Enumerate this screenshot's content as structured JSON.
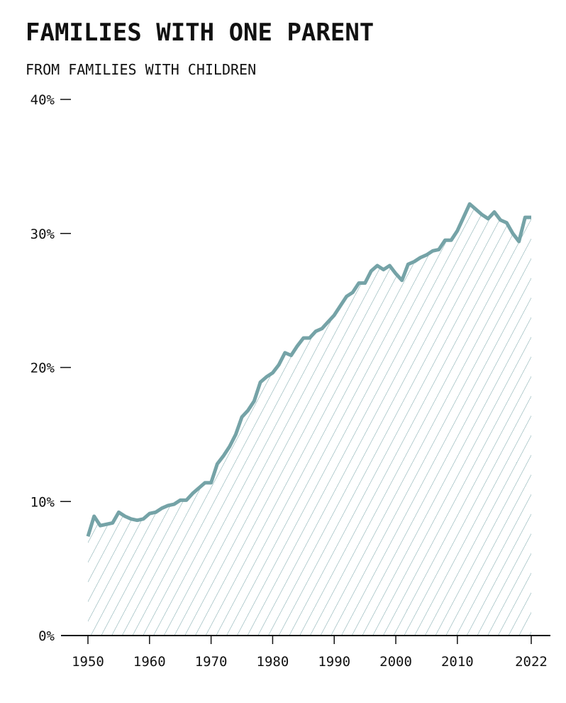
{
  "title": "FAMILIES WITH ONE PARENT",
  "subtitle": "FROM FAMILIES WITH CHILDREN",
  "colors": {
    "line": "#75a3a7",
    "hatch": "#75a3a7",
    "axis": "#111111"
  },
  "chart_data": {
    "type": "area",
    "title": "FAMILIES WITH ONE PARENT",
    "subtitle": "FROM FAMILIES WITH CHILDREN",
    "xlabel": "",
    "ylabel": "",
    "xlim": [
      1946,
      2025
    ],
    "ylim": [
      0,
      40
    ],
    "x_ticks": [
      1950,
      1960,
      1970,
      1980,
      1990,
      2000,
      2010,
      2022
    ],
    "x_tick_labels": [
      "1950",
      "1960",
      "1970",
      "1980",
      "1990",
      "2000",
      "2010",
      "2022"
    ],
    "y_ticks": [
      0,
      10,
      20,
      30,
      40
    ],
    "y_tick_labels": [
      "0%",
      "10%",
      "20%",
      "30%",
      "40%"
    ],
    "grid": false,
    "fill": "hatched",
    "series": [
      {
        "x": [
          1950,
          1951,
          1952,
          1953,
          1954,
          1955,
          1956,
          1957,
          1958,
          1959,
          1960,
          1961,
          1962,
          1963,
          1964,
          1965,
          1966,
          1967,
          1968,
          1969,
          1970,
          1971,
          1972,
          1973,
          1974,
          1975,
          1976,
          1977,
          1978,
          1979,
          1980,
          1981,
          1982,
          1983,
          1984,
          1985,
          1986,
          1987,
          1988,
          1989,
          1990,
          1991,
          1992,
          1993,
          1994,
          1995,
          1996,
          1997,
          1998,
          1999,
          2000,
          2001,
          2002,
          2003,
          2004,
          2005,
          2006,
          2007,
          2008,
          2009,
          2010,
          2011,
          2012,
          2013,
          2014,
          2015,
          2016,
          2017,
          2018,
          2019,
          2020,
          2021,
          2022
        ],
        "values": [
          7.4,
          8.9,
          8.2,
          8.3,
          8.4,
          9.2,
          8.9,
          8.7,
          8.6,
          8.7,
          9.1,
          9.2,
          9.5,
          9.7,
          9.8,
          10.1,
          10.1,
          10.6,
          11.0,
          11.4,
          11.4,
          12.8,
          13.4,
          14.1,
          15.0,
          16.3,
          16.8,
          17.5,
          18.9,
          19.3,
          19.6,
          20.2,
          21.1,
          20.9,
          21.6,
          22.2,
          22.2,
          22.7,
          22.9,
          23.4,
          23.9,
          24.6,
          25.3,
          25.6,
          26.3,
          26.3,
          27.2,
          27.6,
          27.3,
          27.6,
          27.0,
          26.5,
          27.7,
          27.9,
          28.2,
          28.4,
          28.7,
          28.8,
          29.5,
          29.5,
          30.2,
          31.2,
          32.2,
          31.8,
          31.4,
          31.1,
          31.6,
          31.0,
          30.8,
          30.0,
          29.4,
          31.2,
          31.2
        ]
      }
    ]
  }
}
